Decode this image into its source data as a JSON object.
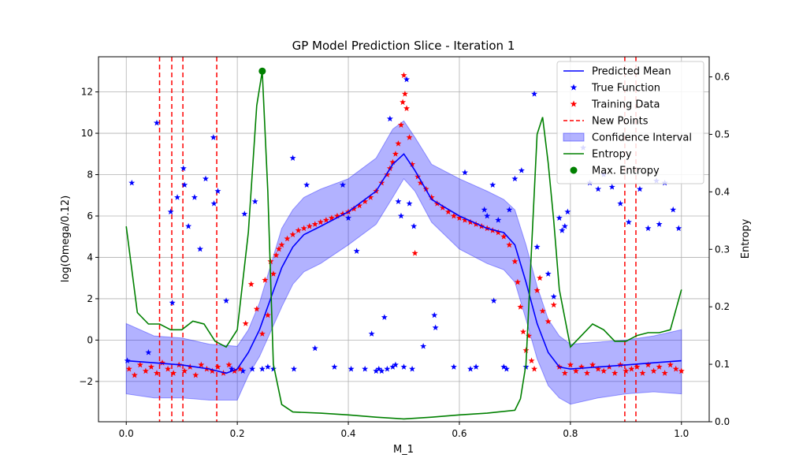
{
  "chart_data": {
    "type": "line",
    "title": "GP Model Prediction Slice - Iteration 1",
    "xlabel": "M_1",
    "ylabel": "log(Omega/0.12)",
    "y2label": "Entropy",
    "xlim": [
      -0.05,
      1.05
    ],
    "ylim": [
      -3.95,
      13.7
    ],
    "y2lim": [
      0.0,
      0.635
    ],
    "xticks": [
      "0.0",
      "0.2",
      "0.4",
      "0.6",
      "0.8",
      "1.0"
    ],
    "yticks": [
      "−2",
      "0",
      "2",
      "4",
      "6",
      "8",
      "10",
      "12"
    ],
    "y2ticks": [
      "0.0",
      "0.1",
      "0.2",
      "0.3",
      "0.4",
      "0.5",
      "0.6"
    ],
    "grid": true,
    "legend_position": "top-right",
    "colors": {
      "mean": "#0000ff",
      "true": "#0000ff",
      "training": "#ff0000",
      "new_points": "#ff0000",
      "confidence": "#0000ff",
      "entropy": "#008000",
      "max_entropy": "#008000"
    },
    "legend": [
      {
        "label": "Predicted Mean",
        "kind": "line",
        "color": "#0000ff"
      },
      {
        "label": "True Function",
        "kind": "star",
        "color": "#0000ff"
      },
      {
        "label": "Training Data",
        "kind": "star",
        "color": "#ff0000"
      },
      {
        "label": "New Points",
        "kind": "dashed",
        "color": "#ff0000"
      },
      {
        "label": "Confidence Interval",
        "kind": "patch",
        "color": "#0000ff"
      },
      {
        "label": "Entropy",
        "kind": "line",
        "color": "#008000"
      },
      {
        "label": "Max. Entropy",
        "kind": "dot",
        "color": "#008000"
      }
    ],
    "predicted_mean": {
      "x": [
        0.0,
        0.05,
        0.1,
        0.15,
        0.18,
        0.2,
        0.22,
        0.24,
        0.26,
        0.28,
        0.3,
        0.32,
        0.35,
        0.4,
        0.45,
        0.48,
        0.5,
        0.52,
        0.55,
        0.6,
        0.65,
        0.68,
        0.7,
        0.72,
        0.74,
        0.76,
        0.78,
        0.8,
        0.85,
        0.9,
        0.95,
        1.0
      ],
      "y": [
        -1.0,
        -1.1,
        -1.2,
        -1.4,
        -1.6,
        -1.4,
        -0.6,
        0.5,
        2.0,
        3.5,
        4.5,
        5.1,
        5.5,
        6.2,
        7.2,
        8.5,
        9.0,
        8.2,
        6.8,
        6.0,
        5.4,
        5.2,
        4.6,
        2.8,
        0.8,
        -0.6,
        -1.3,
        -1.4,
        -1.3,
        -1.2,
        -1.1,
        -1.0
      ]
    },
    "confidence_interval": {
      "x": [
        0.0,
        0.05,
        0.1,
        0.15,
        0.2,
        0.22,
        0.24,
        0.26,
        0.28,
        0.3,
        0.32,
        0.35,
        0.4,
        0.45,
        0.48,
        0.5,
        0.52,
        0.55,
        0.6,
        0.65,
        0.68,
        0.7,
        0.72,
        0.74,
        0.76,
        0.78,
        0.8,
        0.85,
        0.9,
        0.95,
        1.0
      ],
      "upper": [
        0.8,
        0.2,
        0.1,
        -0.2,
        -0.3,
        0.5,
        1.8,
        3.6,
        5.4,
        6.3,
        6.9,
        7.3,
        7.8,
        8.8,
        10.2,
        10.6,
        9.8,
        8.5,
        7.8,
        7.2,
        6.8,
        6.3,
        4.6,
        2.6,
        1.0,
        0.2,
        -0.2,
        -0.1,
        0.0,
        0.2,
        0.5
      ],
      "lower": [
        -2.6,
        -2.8,
        -2.8,
        -2.9,
        -2.9,
        -1.7,
        -0.8,
        0.4,
        1.6,
        2.7,
        3.3,
        3.7,
        4.6,
        5.6,
        6.9,
        7.8,
        7.2,
        5.7,
        4.4,
        3.7,
        3.4,
        2.8,
        1.0,
        -0.9,
        -2.2,
        -2.8,
        -3.1,
        -2.8,
        -2.6,
        -2.5,
        -2.6
      ]
    },
    "entropy": {
      "x": [
        0.0,
        0.02,
        0.04,
        0.06,
        0.08,
        0.1,
        0.12,
        0.14,
        0.16,
        0.18,
        0.2,
        0.22,
        0.235,
        0.245,
        0.255,
        0.265,
        0.28,
        0.3,
        0.35,
        0.4,
        0.45,
        0.5,
        0.55,
        0.6,
        0.65,
        0.7,
        0.71,
        0.72,
        0.73,
        0.74,
        0.75,
        0.76,
        0.77,
        0.78,
        0.8,
        0.82,
        0.84,
        0.86,
        0.88,
        0.9,
        0.92,
        0.94,
        0.96,
        0.98,
        1.0
      ],
      "y": [
        0.34,
        0.19,
        0.17,
        0.17,
        0.16,
        0.16,
        0.175,
        0.17,
        0.14,
        0.13,
        0.16,
        0.33,
        0.55,
        0.61,
        0.4,
        0.1,
        0.03,
        0.017,
        0.015,
        0.012,
        0.008,
        0.005,
        0.008,
        0.012,
        0.015,
        0.02,
        0.04,
        0.1,
        0.3,
        0.5,
        0.53,
        0.45,
        0.35,
        0.23,
        0.13,
        0.15,
        0.17,
        0.16,
        0.14,
        0.14,
        0.15,
        0.155,
        0.155,
        0.16,
        0.23
      ]
    },
    "max_entropy": {
      "x": 0.245,
      "y": 0.61
    },
    "new_points": [
      0.06,
      0.082,
      0.102,
      0.163,
      0.898,
      0.918
    ],
    "true_function": {
      "x": [
        0.002,
        0.01,
        0.04,
        0.055,
        0.08,
        0.083,
        0.092,
        0.103,
        0.105,
        0.112,
        0.123,
        0.133,
        0.143,
        0.157,
        0.158,
        0.165,
        0.18,
        0.19,
        0.21,
        0.213,
        0.227,
        0.232,
        0.245,
        0.255,
        0.265,
        0.3,
        0.302,
        0.325,
        0.34,
        0.375,
        0.39,
        0.4,
        0.405,
        0.415,
        0.43,
        0.442,
        0.45,
        0.455,
        0.46,
        0.465,
        0.47,
        0.475,
        0.48,
        0.485,
        0.49,
        0.495,
        0.5,
        0.505,
        0.51,
        0.515,
        0.518,
        0.535,
        0.555,
        0.557,
        0.59,
        0.61,
        0.62,
        0.63,
        0.645,
        0.65,
        0.66,
        0.662,
        0.67,
        0.68,
        0.685,
        0.69,
        0.7,
        0.712,
        0.72,
        0.735,
        0.74,
        0.76,
        0.77,
        0.78,
        0.785,
        0.79,
        0.795,
        0.823,
        0.835,
        0.85,
        0.86,
        0.875,
        0.89,
        0.905,
        0.925,
        0.94,
        0.955,
        0.96,
        0.97,
        0.985,
        0.995
      ],
      "y": [
        -1.0,
        7.6,
        -0.6,
        10.5,
        6.2,
        1.8,
        6.9,
        8.3,
        7.5,
        5.5,
        6.9,
        4.4,
        7.8,
        9.8,
        6.6,
        7.2,
        1.9,
        -1.4,
        -1.5,
        6.1,
        -1.4,
        6.7,
        -1.4,
        -1.3,
        -1.4,
        8.8,
        -1.4,
        7.5,
        -0.4,
        -1.3,
        7.5,
        5.9,
        -1.4,
        4.3,
        -1.4,
        0.3,
        -1.5,
        -1.4,
        -1.5,
        1.1,
        -1.4,
        10.7,
        -1.3,
        -1.2,
        6.7,
        6.0,
        -1.3,
        12.6,
        6.6,
        -1.4,
        5.5,
        -0.3,
        1.2,
        0.6,
        -1.3,
        8.1,
        -1.4,
        -1.3,
        6.3,
        6.0,
        7.5,
        1.9,
        5.8,
        -1.3,
        -1.4,
        6.3,
        7.8,
        8.2,
        -1.3,
        11.9,
        4.5,
        3.2,
        2.1,
        5.9,
        5.3,
        5.5,
        6.2,
        9.3,
        7.6,
        7.3,
        8.0,
        7.4,
        6.6,
        5.7,
        7.3,
        5.4,
        7.7,
        5.6,
        7.6,
        6.3,
        5.4
      ]
    },
    "training_data": {
      "description_of_clusters": "dense clusters along the predicted mean",
      "x": [
        0.005,
        0.015,
        0.025,
        0.035,
        0.045,
        0.055,
        0.065,
        0.075,
        0.085,
        0.095,
        0.105,
        0.115,
        0.125,
        0.135,
        0.145,
        0.155,
        0.165,
        0.175,
        0.185,
        0.195,
        0.205,
        0.215,
        0.225,
        0.235,
        0.245,
        0.25,
        0.255,
        0.26,
        0.265,
        0.27,
        0.275,
        0.28,
        0.29,
        0.3,
        0.31,
        0.32,
        0.33,
        0.34,
        0.35,
        0.36,
        0.37,
        0.38,
        0.39,
        0.4,
        0.41,
        0.42,
        0.43,
        0.44,
        0.45,
        0.46,
        0.47,
        0.475,
        0.48,
        0.485,
        0.49,
        0.495,
        0.498,
        0.5,
        0.502,
        0.505,
        0.51,
        0.515,
        0.52,
        0.525,
        0.53,
        0.54,
        0.55,
        0.56,
        0.57,
        0.58,
        0.59,
        0.6,
        0.61,
        0.62,
        0.63,
        0.64,
        0.65,
        0.66,
        0.67,
        0.68,
        0.69,
        0.7,
        0.705,
        0.71,
        0.715,
        0.72,
        0.725,
        0.73,
        0.735,
        0.74,
        0.745,
        0.75,
        0.76,
        0.77,
        0.78,
        0.79,
        0.8,
        0.81,
        0.82,
        0.83,
        0.84,
        0.85,
        0.86,
        0.87,
        0.88,
        0.89,
        0.9,
        0.91,
        0.92,
        0.93,
        0.94,
        0.95,
        0.96,
        0.97,
        0.98,
        0.99,
        1.0
      ],
      "y": [
        -1.4,
        -1.7,
        -1.2,
        -1.5,
        -1.3,
        -1.6,
        -1.1,
        -1.4,
        -1.6,
        -1.2,
        -1.5,
        -1.3,
        -1.7,
        -1.2,
        -1.4,
        -1.5,
        -1.3,
        -1.6,
        -1.2,
        -1.5,
        -1.4,
        0.8,
        2.7,
        1.5,
        0.3,
        2.9,
        1.2,
        3.8,
        3.2,
        4.1,
        4.4,
        4.6,
        4.9,
        5.1,
        5.3,
        5.4,
        5.5,
        5.6,
        5.7,
        5.8,
        5.9,
        6.0,
        6.1,
        6.2,
        6.35,
        6.5,
        6.7,
        6.9,
        7.2,
        7.6,
        8.0,
        8.3,
        8.6,
        9.0,
        9.5,
        10.4,
        11.5,
        12.8,
        11.9,
        11.2,
        9.8,
        8.5,
        4.2,
        7.9,
        7.6,
        7.3,
        6.9,
        6.6,
        6.4,
        6.2,
        6.0,
        5.9,
        5.8,
        5.7,
        5.6,
        5.5,
        5.4,
        5.3,
        5.2,
        5.0,
        4.6,
        3.8,
        2.8,
        1.6,
        0.4,
        -0.5,
        0.2,
        -1.0,
        -1.4,
        2.4,
        3.0,
        1.4,
        0.9,
        1.7,
        -1.3,
        -1.6,
        -1.2,
        -1.5,
        -1.3,
        -1.6,
        -1.2,
        -1.4,
        -1.5,
        -1.3,
        -1.6,
        -1.2,
        -1.5,
        -1.4,
        -1.3,
        -1.6,
        -1.2,
        -1.5,
        -1.3,
        -1.6,
        -1.2,
        -1.4,
        -1.5
      ]
    }
  }
}
